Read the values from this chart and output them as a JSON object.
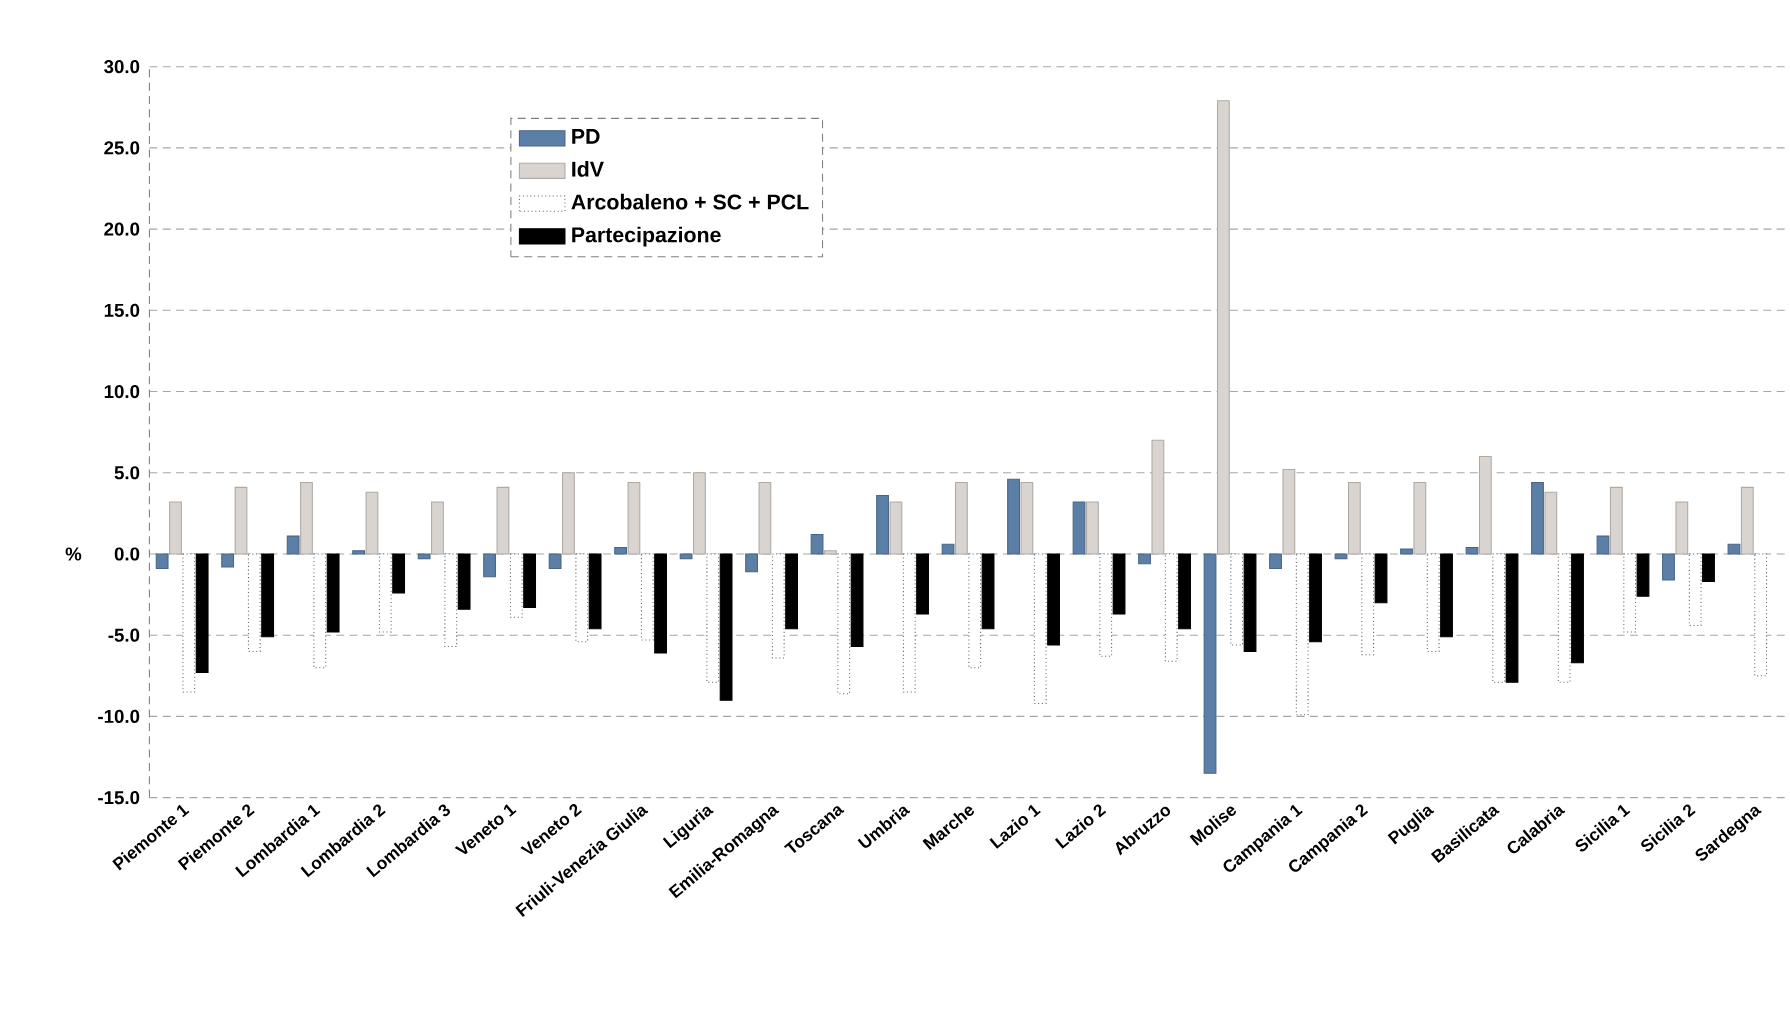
{
  "chart_data": {
    "type": "bar",
    "ylabel": "%",
    "categories": [
      "Piemonte 1",
      "Piemonte 2",
      "Lombardia 1",
      "Lombardia 2",
      "Lombardia 3",
      "Veneto 1",
      "Veneto 2",
      "Friuli-Venezia Giulia",
      "Liguria",
      "Emilia-Romagna",
      "Toscana",
      "Umbria",
      "Marche",
      "Lazio 1",
      "Lazio 2",
      "Abruzzo",
      "Molise",
      "Campania 1",
      "Campania 2",
      "Puglia",
      "Basilicata",
      "Calabria",
      "Sicilia 1",
      "Sicilia 2",
      "Sardegna"
    ],
    "series": [
      {
        "name": "PD",
        "color": "#5b7fa6",
        "values": [
          -0.9,
          -0.8,
          1.1,
          0.2,
          -0.3,
          -1.4,
          -0.9,
          0.4,
          -0.3,
          -1.1,
          1.2,
          3.6,
          0.6,
          4.6,
          3.2,
          -0.6,
          -13.5,
          -0.9,
          -0.3,
          0.3,
          0.4,
          4.4,
          1.1,
          -1.6,
          0.6
        ]
      },
      {
        "name": "IdV",
        "color": "#d9d4d0",
        "values": [
          3.2,
          4.1,
          4.4,
          3.8,
          3.2,
          4.1,
          5.0,
          4.4,
          5.0,
          4.4,
          0.2,
          3.2,
          4.4,
          4.4,
          3.2,
          7.0,
          27.9,
          5.2,
          4.4,
          4.4,
          6.0,
          3.8,
          4.1,
          3.2,
          4.1
        ]
      },
      {
        "name": "Arcobaleno + SC + PCL",
        "color": "#ffffff",
        "values": [
          -8.5,
          -6.0,
          -7.0,
          -4.8,
          -5.7,
          -3.9,
          -5.4,
          -5.3,
          -7.9,
          -6.4,
          -8.6,
          -8.5,
          -7.0,
          -9.2,
          -6.3,
          -6.6,
          -5.6,
          -9.9,
          -6.2,
          -6.0,
          -7.9,
          -7.9,
          -4.8,
          -4.4,
          -7.5
        ]
      },
      {
        "name": "Partecipazione",
        "color": "#000000",
        "values": [
          -7.3,
          -5.1,
          -4.8,
          -2.4,
          -3.4,
          -3.3,
          -4.6,
          -6.1,
          -9.0,
          -4.6,
          -5.7,
          -3.7,
          -4.6,
          -5.6,
          -3.7,
          -4.6,
          -6.0,
          -5.4,
          -3.0,
          -5.1,
          -7.9,
          -6.7,
          -2.6,
          -1.7,
          null
        ]
      }
    ],
    "ylim": [
      -15,
      30
    ],
    "yticks": [
      {
        "value": 30,
        "label": "30.0"
      },
      {
        "value": 25,
        "label": "25.0"
      },
      {
        "value": 20,
        "label": "20.0"
      },
      {
        "value": 15,
        "label": "15.0"
      },
      {
        "value": 10,
        "label": "10.0"
      },
      {
        "value": 5,
        "label": "5.0"
      },
      {
        "value": 0,
        "label": "0.0"
      },
      {
        "value": -5,
        "label": "-5.0"
      },
      {
        "value": -10,
        "label": "-10.0"
      },
      {
        "value": -15,
        "label": "-15.0"
      }
    ],
    "grid": "y",
    "legend": "top left"
  }
}
